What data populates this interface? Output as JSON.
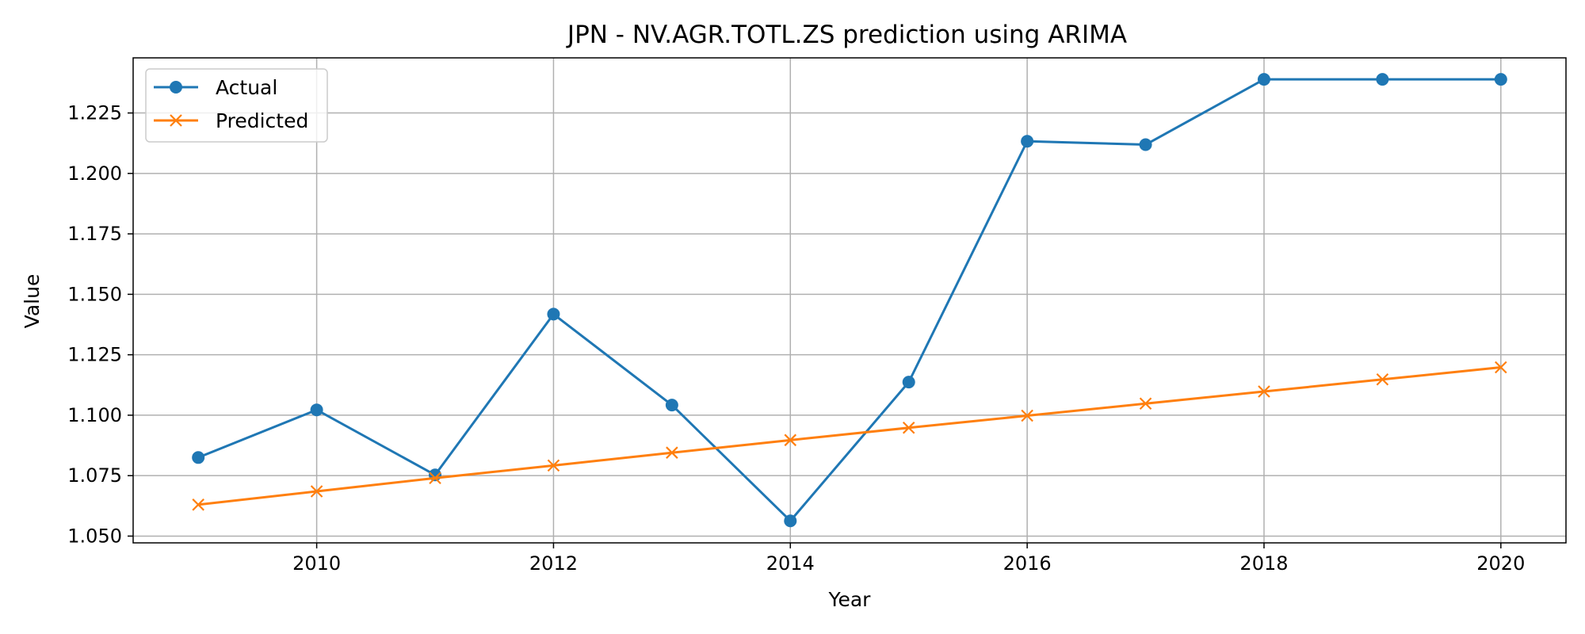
{
  "chart_data": {
    "type": "line",
    "title": "JPN - NV.AGR.TOTL.ZS prediction using ARIMA",
    "xlabel": "Year",
    "ylabel": "Value",
    "x": [
      2009,
      2010,
      2011,
      2012,
      2013,
      2014,
      2015,
      2016,
      2017,
      2018,
      2019,
      2020
    ],
    "xlim": [
      2008.45,
      2020.55
    ],
    "ylim": [
      1.0472,
      1.2478
    ],
    "x_ticks": [
      "2010",
      "2012",
      "2014",
      "2016",
      "2018",
      "2020"
    ],
    "y_ticks": [
      "1.050",
      "1.075",
      "1.100",
      "1.125",
      "1.150",
      "1.175",
      "1.200",
      "1.225"
    ],
    "grid": true,
    "legend_position": "top-left",
    "series": [
      {
        "name": "Actual",
        "color": "#1f77b4",
        "marker": "circle",
        "values": [
          1.0825,
          1.1022,
          1.0753,
          1.1418,
          1.1042,
          1.0563,
          1.1137,
          1.2133,
          1.2119,
          1.2389,
          1.2389,
          1.2389
        ]
      },
      {
        "name": "Predicted",
        "color": "#ff7f0e",
        "marker": "x",
        "values": [
          1.063,
          1.0685,
          1.074,
          1.0792,
          1.0845,
          1.0897,
          1.0948,
          1.0998,
          1.1048,
          1.1098,
          1.1148,
          1.1198
        ]
      }
    ]
  }
}
